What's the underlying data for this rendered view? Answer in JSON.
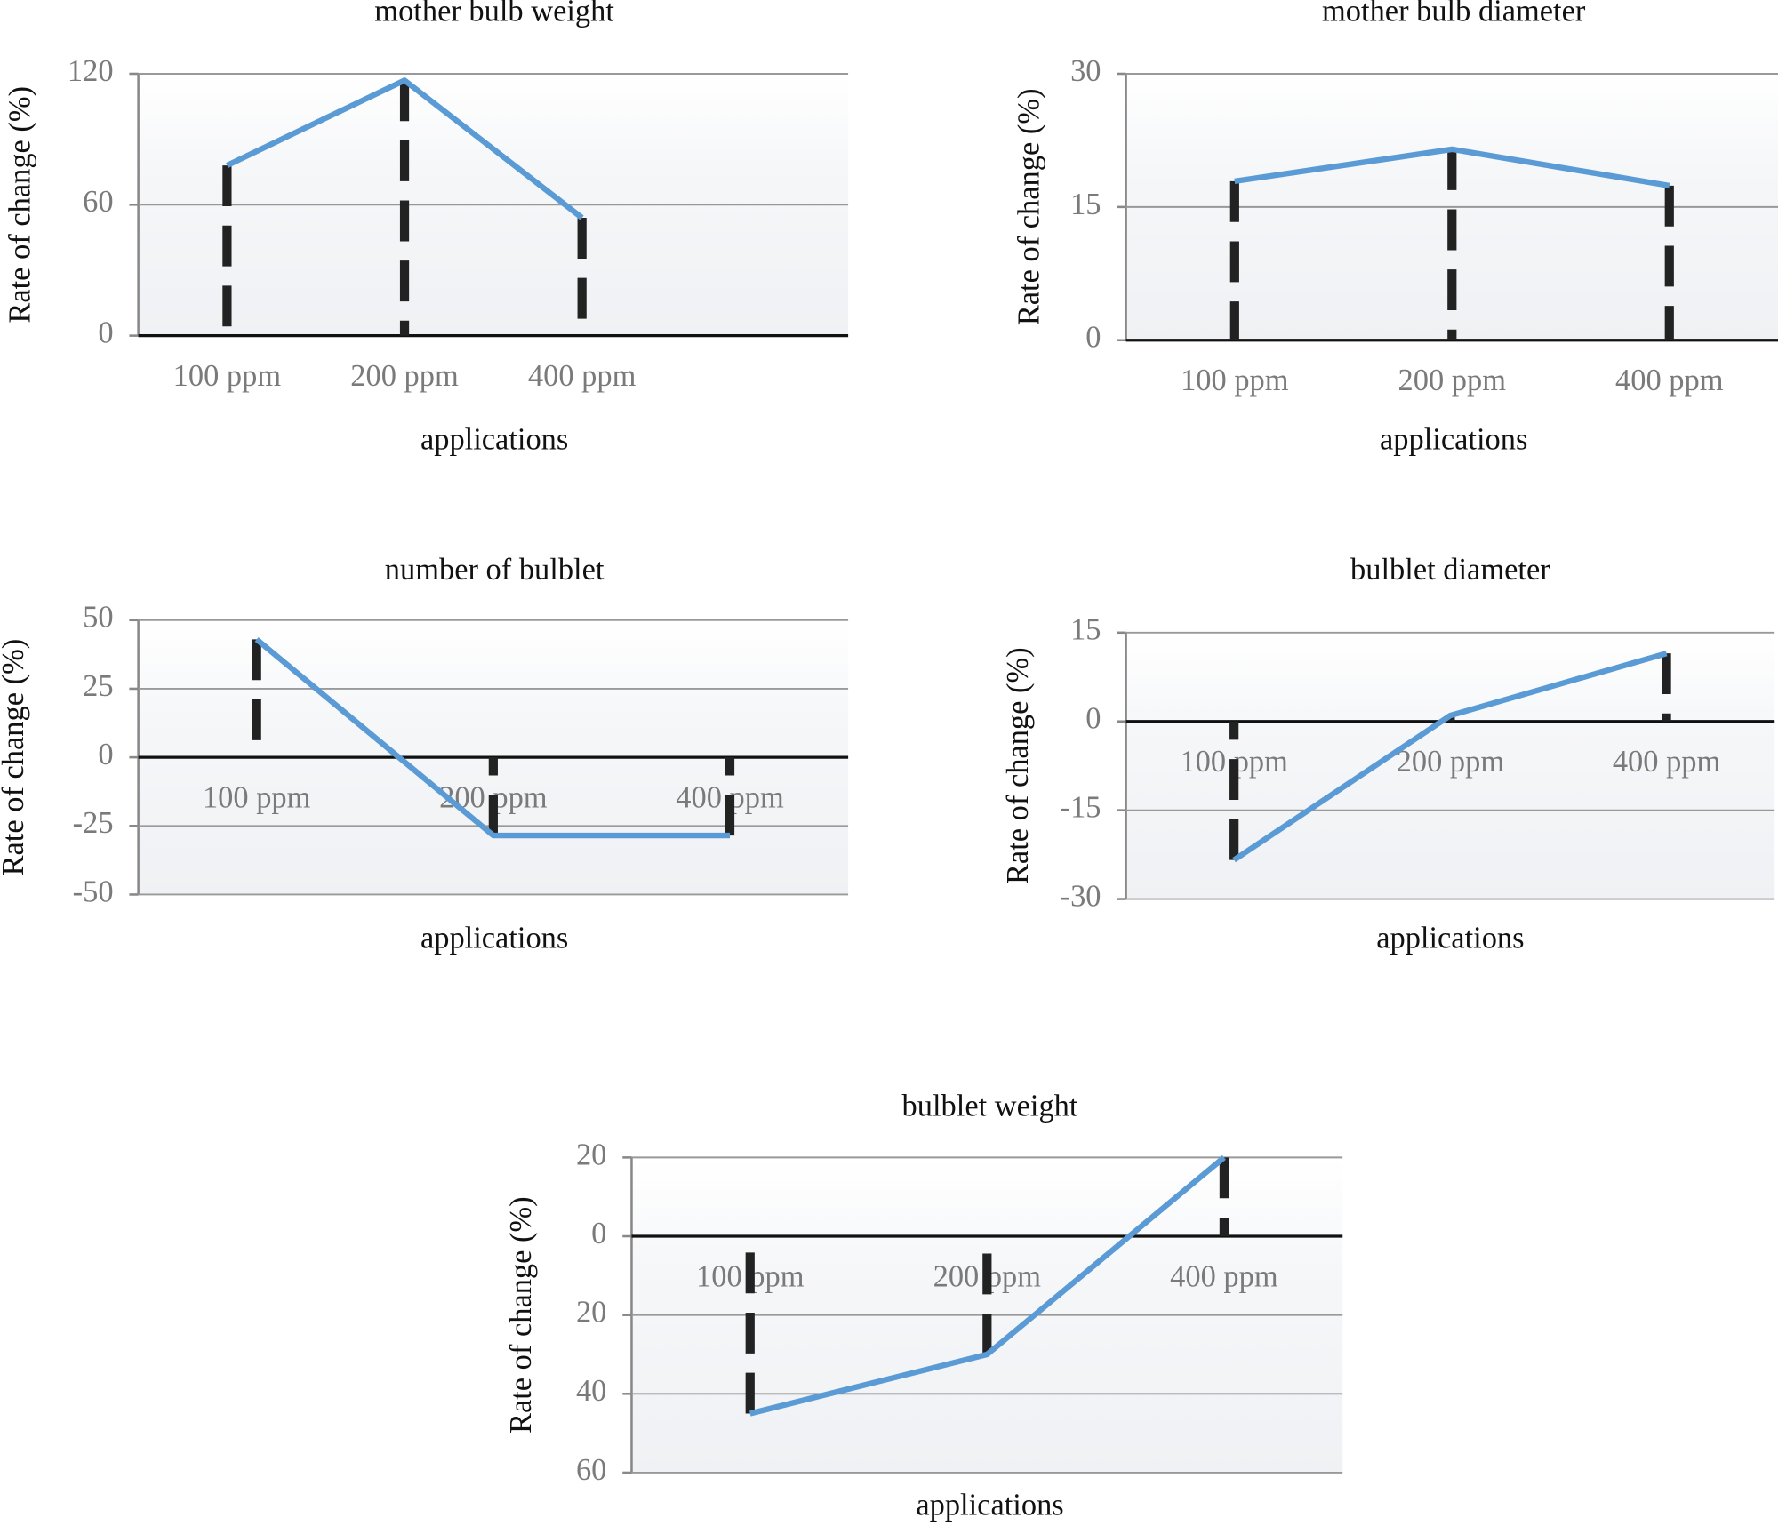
{
  "chart_data": [
    {
      "type": "line",
      "title": "mother bulb weight",
      "x_label": "applications",
      "y_label": "Rate of change (%)",
      "categories": [
        "100 ppm",
        "200 ppm",
        "400 ppm"
      ],
      "values": [
        78,
        117,
        54
      ],
      "color": "#5b9bd5",
      "ylim": [
        0,
        120
      ],
      "yticks": [
        0,
        60,
        120
      ],
      "grid": true
    },
    {
      "type": "line",
      "title": "mother bulb diameter",
      "x_label": "applications",
      "y_label": "Rate of change (%)",
      "categories": [
        "100 ppm",
        "200 ppm",
        "400 ppm"
      ],
      "values": [
        17.9,
        21.5,
        17.4
      ],
      "color": "#5b9bd5",
      "ylim": [
        0,
        30
      ],
      "yticks": [
        0,
        15,
        30
      ],
      "grid": true
    },
    {
      "type": "line",
      "title": "number of bulblet",
      "x_label": "applications",
      "y_label": "Rate of change (%)",
      "categories": [
        "100 ppm",
        "200 ppm",
        "400 ppm"
      ],
      "values": [
        43,
        -28.5,
        -28.5
      ],
      "color": "#5b9bd5",
      "ylim": [
        -50,
        50
      ],
      "yticks": [
        -50,
        -25,
        0,
        25,
        50
      ],
      "grid": true
    },
    {
      "type": "line",
      "title": "bulblet diameter",
      "x_label": "applications",
      "y_label": "Rate of change (%)",
      "categories": [
        "100 ppm",
        "200 ppm",
        "400 ppm"
      ],
      "values": [
        -23.4,
        1,
        11.5
      ],
      "color": "#5b9bd5",
      "ylim": [
        -30,
        15
      ],
      "yticks": [
        -30,
        -15,
        0,
        15
      ],
      "grid": true
    },
    {
      "type": "line",
      "title": "bulblet weight",
      "x_label": "applications",
      "y_label": "Rate of change (%)",
      "categories": [
        "100 ppm",
        "200 ppm",
        "400 ppm"
      ],
      "values": [
        -45,
        -30,
        20
      ],
      "color": "#5b9bd5",
      "ylim": [
        -60,
        20
      ],
      "yticks": [
        {
          "value": -60,
          "label": "60"
        },
        {
          "value": -40,
          "label": "40"
        },
        {
          "value": -20,
          "label": "20"
        },
        0,
        20
      ],
      "grid": true
    }
  ]
}
